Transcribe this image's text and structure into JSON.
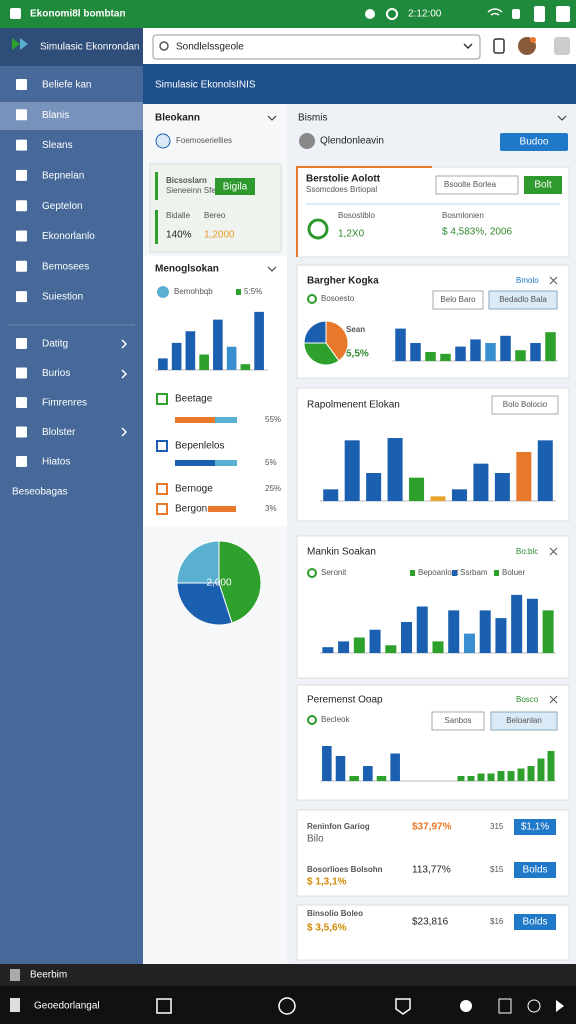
{
  "status_bar": {
    "title": "Ekonomi8l bombtan",
    "time": "2:12:00"
  },
  "sidebar": {
    "app_name": "Simulasic Ekonrondan",
    "menu": [
      "Beliefe kan",
      "Blanis",
      "Sleans",
      "Bepnelan",
      "Geptelon",
      "Ekonorlanlo",
      "Bemosees",
      "Suiestion"
    ],
    "menu2": [
      "Datitg",
      "Burios",
      "Fimrenres",
      "Blolster",
      "Hiatos"
    ],
    "footer": "Beseobagas"
  },
  "search": {
    "placeholder": "Sondlelssgeole"
  },
  "header": {
    "title": "Simulasic EkonolsINIS"
  },
  "left_panel": {
    "title": "Bleokann",
    "subtitle": "Foemoseriellies",
    "card": {
      "title": "Bicsoslarn",
      "subtitle": "Sieneeinn Sfen",
      "button": "Bigila",
      "label_a": "Bidalle",
      "label_b": "Bereo",
      "value_a": "140%",
      "value_b": "1,2000"
    },
    "chart_title": "Menoglsokan",
    "legend_a": "Bemohbqb",
    "legend_b": "5:5%",
    "chart": {
      "values": [
        6,
        14,
        20,
        8,
        26,
        12,
        3,
        30
      ],
      "colors": [
        "#1a5fb0",
        "#1a5fb0",
        "#1a5fb0",
        "#2ea02c",
        "#1a5fb0",
        "#3a8fd0",
        "#2ea02c",
        "#1a5fb0"
      ],
      "ylim": [
        0,
        32
      ]
    },
    "rows": [
      {
        "label": "Beetage",
        "value": "55%"
      },
      {
        "label": "Bepenlelos",
        "value": "5%"
      },
      {
        "label": "Bernoge",
        "value": "25%"
      },
      {
        "label": "Bergon",
        "value": "3%"
      }
    ],
    "pie": {
      "values": [
        45,
        30,
        25
      ],
      "colors": [
        "#2ea02c",
        "#1a5fb0",
        "#5ab0d0"
      ],
      "label": "2,000"
    }
  },
  "right_panel": {
    "title": "Bismis",
    "subtitle": "Qlendonleavin",
    "button": "Budoo",
    "kpi": {
      "title": "Berstolie Aolott",
      "subtitle": "Ssomcdoes Brtiopal",
      "input": "Bsoolte Borlea",
      "button": "Bolt",
      "label_a": "Bosostiblo",
      "value_a": "1,2X0",
      "label_b": "Bosmlonien",
      "value_b": "$ 4,583%, 2006"
    },
    "card1": {
      "title": "Bargher Kogka",
      "link": "Bmolo",
      "subtitle": "Bosoesto",
      "button_a": "Belo Baro",
      "button_b": "Bedadlo Bala",
      "pie": {
        "values": [
          40,
          35,
          25
        ],
        "colors": [
          "#e8792a",
          "#2ea02c",
          "#1a5fb0"
        ]
      },
      "pie_label": "Sean",
      "pie_value": "5,5%",
      "chart": {
        "values": [
          18,
          10,
          5,
          4,
          8,
          12,
          10,
          14,
          6,
          10,
          16
        ],
        "colors": [
          "#1a5fb0",
          "#1a5fb0",
          "#2ea02c",
          "#2ea02c",
          "#1a5fb0",
          "#1a5fb0",
          "#3a8fd0",
          "#1a5fb0",
          "#2ea02c",
          "#1a5fb0",
          "#2ea02c"
        ],
        "ylim": [
          0,
          20
        ]
      }
    },
    "card2": {
      "title": "Rapolmenent Elokan",
      "button": "Bolo Bolocio",
      "chart": {
        "values": [
          5,
          26,
          12,
          27,
          10,
          2,
          5,
          16,
          12,
          21,
          26
        ],
        "colors": [
          "#1a5fb0",
          "#1a5fb0",
          "#1a5fb0",
          "#1a5fb0",
          "#2ea02c",
          "#e8a42a",
          "#1a5fb0",
          "#1a5fb0",
          "#1a5fb0",
          "#e8792a",
          "#1a5fb0"
        ],
        "ylim": [
          0,
          30
        ]
      }
    },
    "card3": {
      "title": "Mankin Soakan",
      "link": "Bo:blc",
      "subtitle": "Seronit",
      "legend": [
        "Bepoanlout",
        "Ssrbam",
        "Boluer"
      ],
      "chart": {
        "values": [
          3,
          6,
          8,
          12,
          4,
          16,
          24,
          6,
          22,
          10,
          22,
          18,
          30,
          28,
          22
        ],
        "colors": [
          "#1a5fb0",
          "#1a5fb0",
          "#2ea02c",
          "#1a5fb0",
          "#2ea02c",
          "#1a5fb0",
          "#1a5fb0",
          "#2ea02c",
          "#1a5fb0",
          "#3a8fd0",
          "#1a5fb0",
          "#1a5fb0",
          "#1a5fb0",
          "#1a5fb0",
          "#2ea02c"
        ],
        "ylim": [
          0,
          32
        ]
      }
    },
    "card4": {
      "title": "Peremenst Ooap",
      "link": "Bosco",
      "subtitle": "Becleok",
      "button_a": "Sanbos",
      "button_b": "Beloanlan",
      "chart_a": {
        "values": [
          14,
          10,
          2,
          6,
          2,
          11
        ],
        "colors": [
          "#1a5fb0",
          "#1a5fb0",
          "#2ea02c",
          "#1a5fb0",
          "#2ea02c",
          "#1a5fb0"
        ],
        "ylim": [
          0,
          16
        ]
      },
      "chart_b": {
        "values": [
          2,
          2,
          3,
          3,
          4,
          4,
          5,
          6,
          9,
          12
        ],
        "colors": [
          "#2ea02c",
          "#2ea02c",
          "#2ea02c",
          "#2ea02c",
          "#2ea02c",
          "#2ea02c",
          "#2ea02c",
          "#2ea02c",
          "#2ea02c",
          "#2ea02c"
        ],
        "ylim": [
          0,
          16
        ]
      }
    },
    "list": [
      {
        "label": "Reninfon Gariog",
        "sub": "Bilo",
        "value": "$37,97%",
        "small": "315",
        "button": "$1,1%"
      },
      {
        "label": "Bosorlioes Bolsohn",
        "sub": "$ 1,3,1%",
        "value": "113,77%",
        "small": "$15",
        "button": "Bolds"
      },
      {
        "label": "Binsolio Boleo",
        "sub": "$ 3,5,6%",
        "value": "$23,816",
        "small": "$16",
        "button": "Bolds"
      }
    ]
  },
  "bottom": {
    "taskbar": "Beerbim",
    "nav_label": "Geoedorlangal"
  }
}
